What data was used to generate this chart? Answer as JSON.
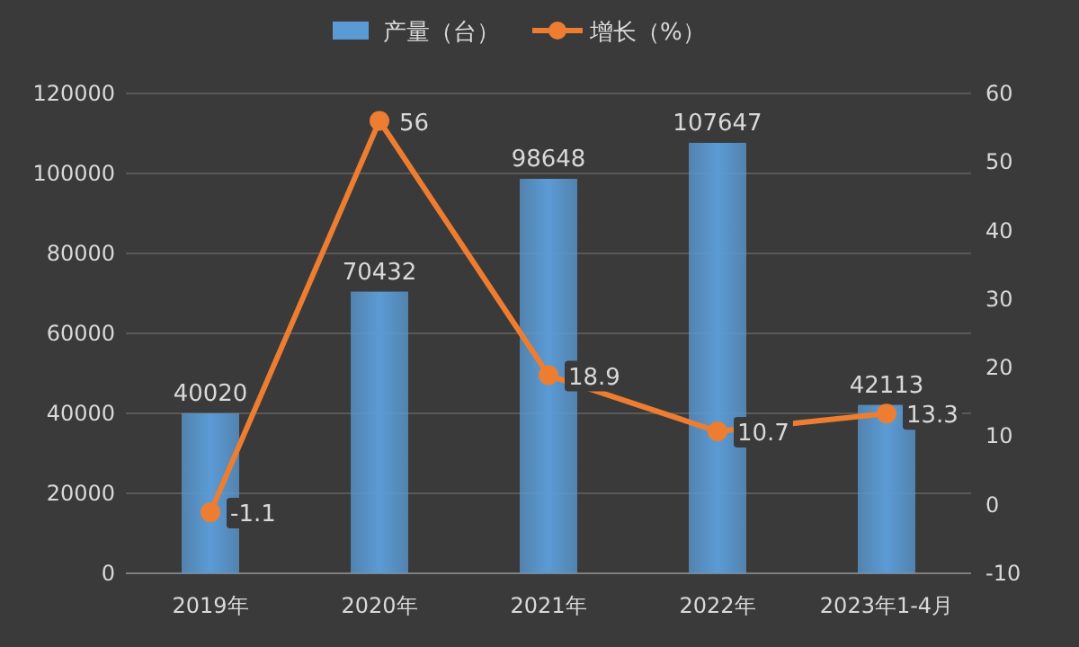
{
  "chart_data": {
    "type": "bar",
    "categories": [
      "2019年",
      "2020年",
      "2021年",
      "2022年",
      "2023年1-4月"
    ],
    "series": [
      {
        "name": "产量（台）",
        "color": "#5b9bd5",
        "values": [
          40020,
          70432,
          98648,
          107647,
          42113
        ]
      },
      {
        "name": "增长（%）",
        "type": "line",
        "axis": "y2",
        "color": "#ed7d31",
        "values": [
          -1.1,
          56,
          18.9,
          10.7,
          13.3
        ]
      }
    ],
    "ylim": [
      0,
      120000
    ],
    "yticks": [
      0,
      20000,
      40000,
      60000,
      80000,
      100000,
      120000
    ],
    "y2lim": [
      -10,
      60
    ],
    "y2ticks": [
      -10,
      0,
      10,
      20,
      30,
      40,
      50,
      60
    ],
    "grid": "y",
    "legend": "top",
    "marker": "circle",
    "line_style": "solid",
    "data_labels": true
  }
}
